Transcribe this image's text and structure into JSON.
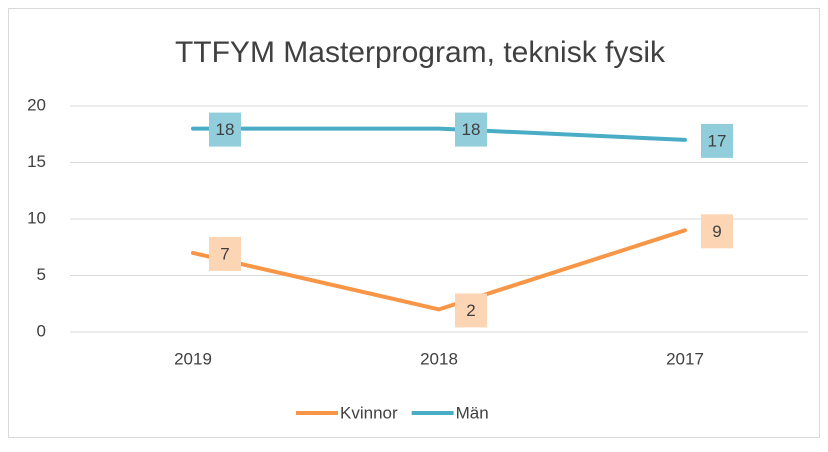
{
  "chart_data": {
    "type": "line",
    "title": "TTFYM Masterprogram, teknisk fysik",
    "categories": [
      "2019",
      "2018",
      "2017"
    ],
    "series": [
      {
        "name": "Kvinnor",
        "color": "#f79646",
        "label_color": "#fcd5b4",
        "values": [
          7,
          2,
          9
        ]
      },
      {
        "name": "Män",
        "color": "#4bacc6",
        "label_color": "#92cddc",
        "values": [
          18,
          18,
          17
        ]
      }
    ],
    "ylim": [
      0,
      20
    ],
    "yticks": [
      0,
      5,
      10,
      15,
      20
    ],
    "grid": true,
    "legend": "bottom",
    "data_labels": true
  }
}
